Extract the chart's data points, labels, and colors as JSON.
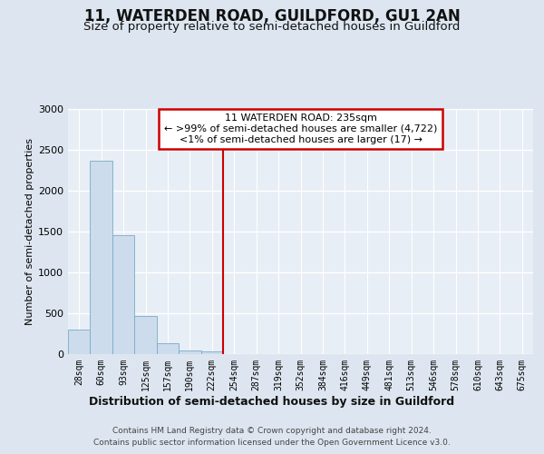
{
  "title_line1": "11, WATERDEN ROAD, GUILDFORD, GU1 2AN",
  "title_line2": "Size of property relative to semi-detached houses in Guildford",
  "xlabel": "Distribution of semi-detached houses by size in Guildford",
  "ylabel": "Number of semi-detached properties",
  "footer": "Contains HM Land Registry data © Crown copyright and database right 2024.\nContains public sector information licensed under the Open Government Licence v3.0.",
  "bin_labels": [
    "28sqm",
    "60sqm",
    "93sqm",
    "125sqm",
    "157sqm",
    "190sqm",
    "222sqm",
    "254sqm",
    "287sqm",
    "319sqm",
    "352sqm",
    "384sqm",
    "416sqm",
    "449sqm",
    "481sqm",
    "513sqm",
    "546sqm",
    "578sqm",
    "610sqm",
    "643sqm",
    "675sqm"
  ],
  "bar_values": [
    300,
    2370,
    1460,
    470,
    130,
    50,
    30,
    0,
    0,
    0,
    0,
    0,
    0,
    0,
    0,
    0,
    0,
    0,
    0,
    0,
    0
  ],
  "bar_color": "#ccdcec",
  "bar_edge_color": "#7aaac8",
  "vline_x_index": 7,
  "vline_color": "#cc0000",
  "annotation_title": "11 WATERDEN ROAD: 235sqm",
  "annotation_line1": "← >99% of semi-detached houses are smaller (4,722)",
  "annotation_line2": "<1% of semi-detached houses are larger (17) →",
  "annotation_box_color": "#cc0000",
  "ylim": [
    0,
    3000
  ],
  "yticks": [
    0,
    500,
    1000,
    1500,
    2000,
    2500,
    3000
  ],
  "background_color": "#dde6f0",
  "plot_bg_color": "#e8eef5",
  "grid_color": "#ffffff",
  "title_fontsize": 12,
  "subtitle_fontsize": 9.5
}
